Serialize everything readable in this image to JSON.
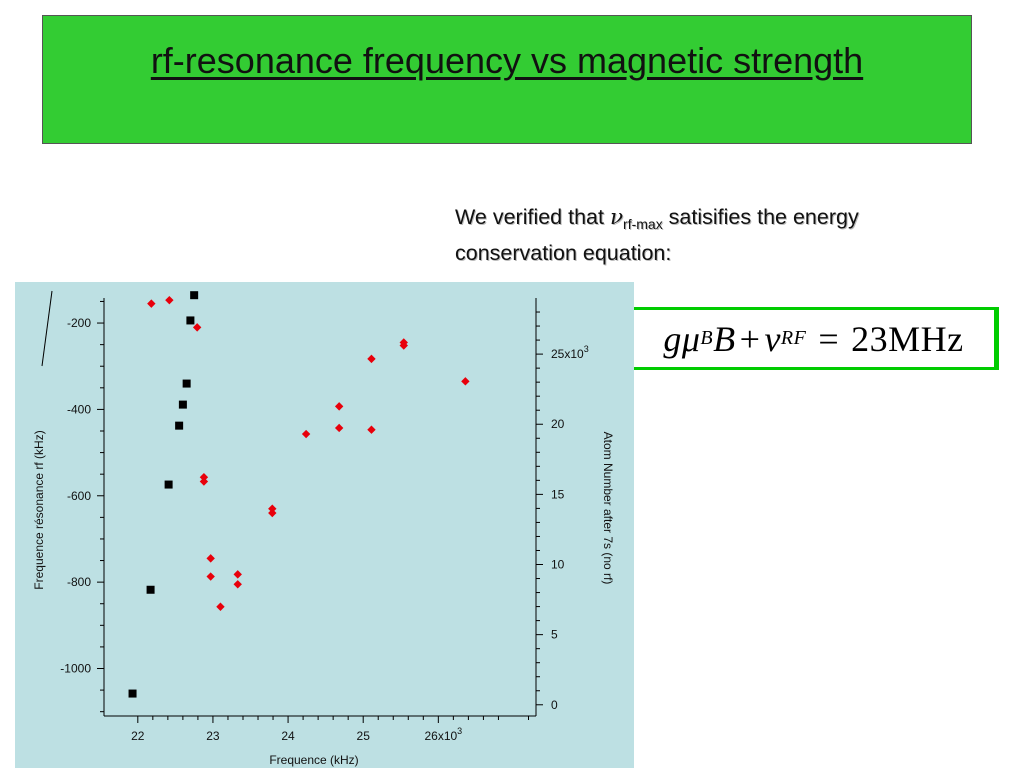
{
  "title": "rf-resonance frequency vs magnetic strength",
  "note": {
    "prefix": "We verified that ",
    "symbol": "ν",
    "subscript": "rf-max",
    "suffix": " satisifies the energy conservation equation:"
  },
  "equation": {
    "g": "g",
    "mu": "μ",
    "mu_sub": "B",
    "B": "B",
    "plus": "+",
    "nu": "ν",
    "nu_sub": "RF",
    "equals": "=",
    "rhs": "23MHz"
  },
  "colors": {
    "title_bg": "#33cc33",
    "equation_bg": "#00cc00",
    "chart_bg": "#bde0e3",
    "series_red": "#e8000b",
    "series_black": "#000000"
  },
  "chart_data": {
    "type": "scatter",
    "xlabel": "Frequence (kHz)",
    "ylabel": "Frequence résonance rf (kHz)",
    "y2label": "Atom Number after 7s (no rf)",
    "xlim": [
      21.55,
      27.3
    ],
    "ylim": [
      -1110,
      -142
    ],
    "y2lim": [
      -0.8,
      29.0
    ],
    "x_ticks": [
      {
        "value": 22,
        "label": "22"
      },
      {
        "value": 23,
        "label": "23"
      },
      {
        "value": 24,
        "label": "24"
      },
      {
        "value": 25,
        "label": "25"
      },
      {
        "value": 26,
        "label": "26x10",
        "exp": "3"
      }
    ],
    "y_ticks": [
      {
        "value": -200,
        "label": "-200"
      },
      {
        "value": -400,
        "label": "-400"
      },
      {
        "value": -600,
        "label": "-600"
      },
      {
        "value": -800,
        "label": "-800"
      },
      {
        "value": -1000,
        "label": "-1000"
      }
    ],
    "y2_ticks": [
      {
        "value": 0,
        "label": "0"
      },
      {
        "value": 5,
        "label": "5"
      },
      {
        "value": 10,
        "label": "10"
      },
      {
        "value": 15,
        "label": "15"
      },
      {
        "value": 20,
        "label": "20"
      },
      {
        "value": 25,
        "label": "25x10",
        "exp": "3"
      }
    ],
    "series": [
      {
        "axis": "left",
        "marker": "diamond",
        "color": "#e8000b",
        "points": [
          {
            "x": 22.18,
            "y": -155
          },
          {
            "x": 22.42,
            "y": -147
          },
          {
            "x": 22.79,
            "y": -210
          },
          {
            "x": 22.88,
            "y": -557
          },
          {
            "x": 22.88,
            "y": -567
          },
          {
            "x": 22.97,
            "y": -745
          },
          {
            "x": 22.97,
            "y": -787
          },
          {
            "x": 23.1,
            "y": -857
          },
          {
            "x": 23.33,
            "y": -782
          },
          {
            "x": 23.33,
            "y": -805
          },
          {
            "x": 23.79,
            "y": -630
          },
          {
            "x": 23.79,
            "y": -640
          },
          {
            "x": 24.24,
            "y": -457
          },
          {
            "x": 24.68,
            "y": -393
          },
          {
            "x": 24.68,
            "y": -443
          },
          {
            "x": 25.11,
            "y": -283
          },
          {
            "x": 25.11,
            "y": -447
          },
          {
            "x": 25.54,
            "y": -245
          },
          {
            "x": 25.54,
            "y": -252
          },
          {
            "x": 26.36,
            "y": -335
          }
        ]
      },
      {
        "axis": "right",
        "marker": "square",
        "color": "#000000",
        "points": [
          {
            "x": 21.93,
            "y": 0.8
          },
          {
            "x": 22.17,
            "y": 8.2
          },
          {
            "x": 22.41,
            "y": 15.7
          },
          {
            "x": 22.55,
            "y": 19.9
          },
          {
            "x": 22.6,
            "y": 21.4
          },
          {
            "x": 22.65,
            "y": 22.9
          },
          {
            "x": 22.7,
            "y": 27.4
          },
          {
            "x": 22.75,
            "y": 29.2
          }
        ]
      }
    ]
  }
}
